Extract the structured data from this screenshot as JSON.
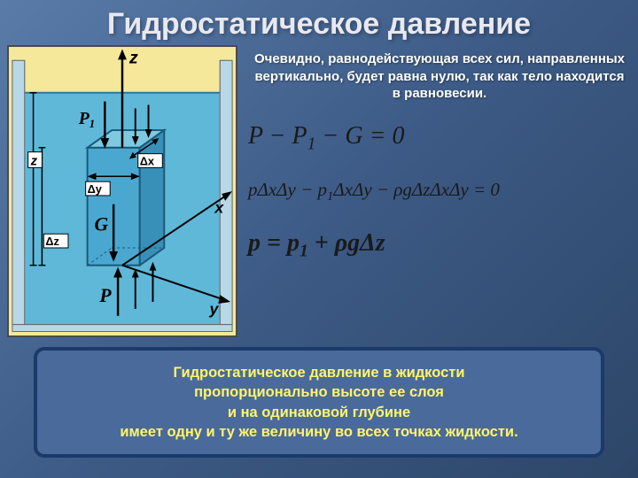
{
  "title": "Гидростатическое давление",
  "explanation": "Очевидно, равнодействующая всех сил, направленных вертикально, будет равна нулю, так как тело находится в равновесии.",
  "formula1_html": "<i>P</i> − <i>P</i><sub>1</sub> − <i>G</i> = 0",
  "formula2_html": "<i>p</i>Δ<i>x</i>Δ<i>y</i> − <i>p</i><sub>1</sub>Δ<i>x</i>Δ<i>y</i> − <i>ρg</i>Δ<i>z</i>Δ<i>x</i>Δ<i>y</i> = 0",
  "formula3_html": "<i>p</i> = <i>p<sub>1</sub></i> + <i>ρg</i>Δ<i>z</i>",
  "conclusion_html": "Гидростатическое давление в жидкости<br>пропорционально высоте ее слоя<br>и на одинаковой глубине<br>имеет одну и ту же величину во всех точках жидкости.",
  "diagram": {
    "bg_color": "#f5e89a",
    "water_color": "#5fb8d8",
    "cuboid_front": "#4aa8d0",
    "cuboid_top": "#7ec8e0",
    "cuboid_side": "#3890b8",
    "axis_color": "#000000",
    "labels": {
      "z_axis": "z",
      "x_axis": "x",
      "y_axis": "y",
      "z_left": "z",
      "P1": "P₁",
      "G": "G",
      "P": "P",
      "dx": "Δx",
      "dy": "Δy",
      "dz": "Δz"
    }
  }
}
